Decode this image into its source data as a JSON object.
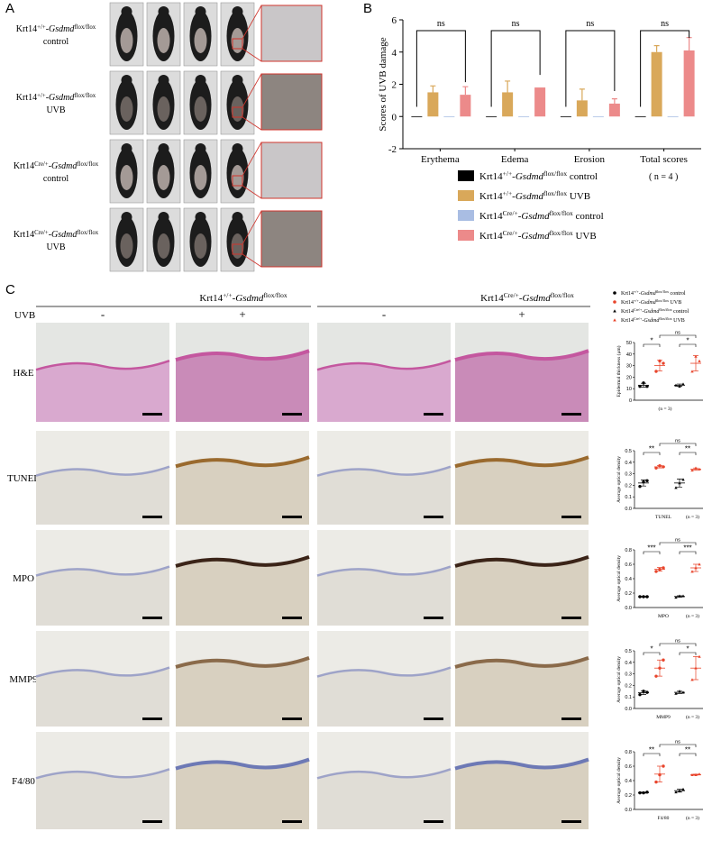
{
  "panel_labels": [
    "A",
    "B",
    "C"
  ],
  "panel_a": {
    "rows": [
      {
        "line1": [
          {
            "t": "Krt14"
          },
          {
            "t": "+/+",
            "s": "sup"
          },
          {
            "t": "-"
          },
          {
            "t": "Gsdmd",
            "s": "i"
          },
          {
            "t": "flox/flox",
            "s": "sup"
          }
        ],
        "line2": "control"
      },
      {
        "line1": [
          {
            "t": "Krt14"
          },
          {
            "t": "+/+",
            "s": "sup"
          },
          {
            "t": "-"
          },
          {
            "t": "Gsdmd",
            "s": "i"
          },
          {
            "t": "flox/flox",
            "s": "sup"
          }
        ],
        "line2": "UVB"
      },
      {
        "line1": [
          {
            "t": "Krt14"
          },
          {
            "t": "Cre/+",
            "s": "sup"
          },
          {
            "t": "-"
          },
          {
            "t": "Gsdmd",
            "s": "i"
          },
          {
            "t": "flox/flox",
            "s": "sup"
          }
        ],
        "line2": "control"
      },
      {
        "line1": [
          {
            "t": "Krt14"
          },
          {
            "t": "Cre/+",
            "s": "sup"
          },
          {
            "t": "-"
          },
          {
            "t": "Gsdmd",
            "s": "i"
          },
          {
            "t": "flox/flox",
            "s": "sup"
          }
        ],
        "line2": "UVB"
      }
    ]
  },
  "chart_data": [
    {
      "type": "bar",
      "ylabel": "Scores of UVB damage",
      "categories": [
        "Erythema",
        "Edema",
        "Erosion",
        "Total scores"
      ],
      "ylim": [
        -2,
        6
      ],
      "yticks": [
        -2,
        0,
        2,
        4,
        6
      ],
      "series": [
        {
          "name": [
            {
              "t": "Krt14"
            },
            {
              "t": "+/+",
              "s": "sup"
            },
            {
              "t": "-"
            },
            {
              "t": "Gsdmd",
              "s": "i"
            },
            {
              "t": "flox/flox",
              "s": "sup"
            },
            {
              "t": " control"
            }
          ],
          "color": "#000000",
          "values": [
            0,
            0,
            0,
            0
          ],
          "errors": [
            0,
            0,
            0,
            0
          ]
        },
        {
          "name": [
            {
              "t": "Krt14"
            },
            {
              "t": "+/+",
              "s": "sup"
            },
            {
              "t": "-"
            },
            {
              "t": "Gsdmd",
              "s": "i"
            },
            {
              "t": "flox/flox",
              "s": "sup"
            },
            {
              "t": " UVB"
            }
          ],
          "color": "#d9a85a",
          "values": [
            1.5,
            1.5,
            1.0,
            4.0
          ],
          "errors": [
            0.4,
            0.7,
            0.7,
            0.4
          ]
        },
        {
          "name": [
            {
              "t": "Krt14"
            },
            {
              "t": "Cre/+",
              "s": "sup"
            },
            {
              "t": "-"
            },
            {
              "t": "Gsdmd",
              "s": "i"
            },
            {
              "t": "flox/flox",
              "s": "sup"
            },
            {
              "t": " control"
            }
          ],
          "color": "#a9bde3",
          "values": [
            0,
            0,
            0,
            0
          ],
          "errors": [
            0,
            0,
            0,
            0
          ]
        },
        {
          "name": [
            {
              "t": "Krt14"
            },
            {
              "t": "Cre/+",
              "s": "sup"
            },
            {
              "t": "-"
            },
            {
              "t": "Gsdmd",
              "s": "i"
            },
            {
              "t": "flox/flox",
              "s": "sup"
            },
            {
              "t": " UVB"
            }
          ],
          "color": "#ec8a8a",
          "values": [
            1.35,
            1.8,
            0.8,
            4.1
          ],
          "errors": [
            0.5,
            0,
            0.3,
            0.8
          ]
        }
      ],
      "significance": [
        "ns",
        "ns",
        "ns",
        "ns"
      ],
      "note": "( n = 4 )"
    },
    {
      "type": "scatter",
      "ylabel": "Epidermal thickness (μm)",
      "ylim": [
        0,
        50
      ],
      "yticks": [
        0,
        10,
        20,
        30,
        40,
        50
      ],
      "groups": [
        {
          "color": "#000000",
          "marker": "circle",
          "values": [
            12,
            15,
            12
          ],
          "mean": 13,
          "sd": 1.7
        },
        {
          "color": "#e8452c",
          "marker": "circle",
          "values": [
            25,
            34,
            32
          ],
          "mean": 30,
          "sd": 4.6
        },
        {
          "color": "#000000",
          "marker": "triangle",
          "values": [
            13,
            12,
            14
          ],
          "mean": 13,
          "sd": 1
        },
        {
          "color": "#e8452c",
          "marker": "triangle",
          "values": [
            25,
            38,
            34
          ],
          "mean": 32,
          "sd": 6.6
        }
      ],
      "significance": [
        "*",
        "*",
        "ns"
      ],
      "note": "(n = 3)"
    },
    {
      "type": "scatter",
      "ylabel": "Average optical density",
      "ylim": [
        0,
        0.5
      ],
      "yticks": [
        {
          "value": 0,
          "label": "0.0"
        },
        0.1,
        0.2,
        0.3,
        0.4,
        0.5
      ],
      "groups": [
        {
          "color": "#000000",
          "marker": "circle",
          "values": [
            0.19,
            0.23,
            0.24
          ],
          "mean": 0.22,
          "sd": 0.026
        },
        {
          "color": "#e8452c",
          "marker": "circle",
          "values": [
            0.35,
            0.37,
            0.36
          ],
          "mean": 0.36,
          "sd": 0.01
        },
        {
          "color": "#000000",
          "marker": "triangle",
          "values": [
            0.18,
            0.22,
            0.25
          ],
          "mean": 0.22,
          "sd": 0.035
        },
        {
          "color": "#e8452c",
          "marker": "triangle",
          "values": [
            0.33,
            0.35,
            0.34
          ],
          "mean": 0.34,
          "sd": 0.01
        }
      ],
      "significance": [
        "**",
        "**",
        "ns"
      ],
      "xlabel": "TUNEL",
      "note": "(n = 3)"
    },
    {
      "type": "scatter",
      "ylabel": "Average optical density",
      "ylim": [
        0,
        0.8
      ],
      "yticks": [
        {
          "value": 0,
          "label": "0.0"
        },
        0.2,
        0.4,
        0.6,
        0.8
      ],
      "groups": [
        {
          "color": "#000000",
          "marker": "circle",
          "values": [
            0.15,
            0.15,
            0.15
          ],
          "mean": 0.15,
          "sd": 0.005
        },
        {
          "color": "#e8452c",
          "marker": "circle",
          "values": [
            0.5,
            0.53,
            0.55
          ],
          "mean": 0.53,
          "sd": 0.025
        },
        {
          "color": "#000000",
          "marker": "triangle",
          "values": [
            0.14,
            0.16,
            0.16
          ],
          "mean": 0.153,
          "sd": 0.01
        },
        {
          "color": "#e8452c",
          "marker": "triangle",
          "values": [
            0.5,
            0.55,
            0.6
          ],
          "mean": 0.55,
          "sd": 0.05
        }
      ],
      "significance": [
        "***",
        "***",
        "ns"
      ],
      "xlabel": "MPO",
      "note": "(n = 3)"
    },
    {
      "type": "scatter",
      "ylabel": "Average optical density",
      "ylim": [
        0,
        0.5
      ],
      "yticks": [
        {
          "value": 0,
          "label": "0.0"
        },
        0.1,
        0.2,
        0.3,
        0.4,
        0.5
      ],
      "groups": [
        {
          "color": "#000000",
          "marker": "circle",
          "values": [
            0.12,
            0.15,
            0.14
          ],
          "mean": 0.137,
          "sd": 0.015
        },
        {
          "color": "#e8452c",
          "marker": "circle",
          "values": [
            0.28,
            0.35,
            0.42
          ],
          "mean": 0.35,
          "sd": 0.07
        },
        {
          "color": "#000000",
          "marker": "triangle",
          "values": [
            0.13,
            0.15,
            0.14
          ],
          "mean": 0.14,
          "sd": 0.01
        },
        {
          "color": "#e8452c",
          "marker": "triangle",
          "values": [
            0.25,
            0.35,
            0.45
          ],
          "mean": 0.35,
          "sd": 0.1
        }
      ],
      "significance": [
        "*",
        "*",
        "ns"
      ],
      "xlabel": "MMP9",
      "note": "(n = 3)"
    },
    {
      "type": "scatter",
      "ylabel": "Average optical density",
      "ylim": [
        0,
        0.8
      ],
      "yticks": [
        {
          "value": 0,
          "label": "0.0"
        },
        0.2,
        0.4,
        0.6,
        0.8
      ],
      "groups": [
        {
          "color": "#000000",
          "marker": "circle",
          "values": [
            0.23,
            0.23,
            0.24
          ],
          "mean": 0.233,
          "sd": 0.006
        },
        {
          "color": "#e8452c",
          "marker": "circle",
          "values": [
            0.38,
            0.48,
            0.6
          ],
          "mean": 0.49,
          "sd": 0.11
        },
        {
          "color": "#000000",
          "marker": "triangle",
          "values": [
            0.24,
            0.26,
            0.28
          ],
          "mean": 0.26,
          "sd": 0.02
        },
        {
          "color": "#e8452c",
          "marker": "triangle",
          "values": [
            0.48,
            0.48,
            0.49
          ],
          "mean": 0.483,
          "sd": 0.006
        }
      ],
      "significance": [
        "**",
        "**",
        "ns"
      ],
      "xlabel": "F4/80",
      "note": "(n = 3)"
    }
  ],
  "panel_c": {
    "group_headers": [
      [
        {
          "t": "Krt14"
        },
        {
          "t": "+/+",
          "s": "sup"
        },
        {
          "t": "-"
        },
        {
          "t": "Gsdmd",
          "s": "i"
        },
        {
          "t": "flox/flox",
          "s": "sup"
        }
      ],
      [
        {
          "t": "Krt14"
        },
        {
          "t": "Cre/+",
          "s": "sup"
        },
        {
          "t": "-"
        },
        {
          "t": "Gsdmd",
          "s": "i"
        },
        {
          "t": "flox/flox",
          "s": "sup"
        }
      ]
    ],
    "treatment_label": "UVB",
    "treatments": [
      "-",
      "+",
      "-",
      "+"
    ],
    "stains": [
      "H&E",
      "TUNEL",
      "MPO",
      "MMP9",
      "F4/80"
    ],
    "legend": [
      {
        "name": [
          {
            "t": "Krt14"
          },
          {
            "t": "+/+",
            "s": "sup"
          },
          {
            "t": "-"
          },
          {
            "t": "Gsdmd",
            "s": "i"
          },
          {
            "t": "flox/flox",
            "s": "sup"
          },
          {
            "t": " control"
          }
        ],
        "color": "#000000",
        "marker": "circle"
      },
      {
        "name": [
          {
            "t": "Krt14"
          },
          {
            "t": "+/+",
            "s": "sup"
          },
          {
            "t": "-"
          },
          {
            "t": "Gsdmd",
            "s": "i"
          },
          {
            "t": "flox/flox",
            "s": "sup"
          },
          {
            "t": " UVB"
          }
        ],
        "color": "#e8452c",
        "marker": "circle"
      },
      {
        "name": [
          {
            "t": "Krt14"
          },
          {
            "t": "Cre/+",
            "s": "sup"
          },
          {
            "t": "-"
          },
          {
            "t": "Gsdmd",
            "s": "i"
          },
          {
            "t": "flox/flox",
            "s": "sup"
          },
          {
            "t": " control"
          }
        ],
        "color": "#000000",
        "marker": "triangle"
      },
      {
        "name": [
          {
            "t": "Krt14"
          },
          {
            "t": "Cre/+",
            "s": "sup"
          },
          {
            "t": "-"
          },
          {
            "t": "Gsdmd",
            "s": "i"
          },
          {
            "t": "flox/flox",
            "s": "sup"
          },
          {
            "t": " UVB"
          }
        ],
        "color": "#e8452c",
        "marker": "triangle"
      }
    ]
  }
}
